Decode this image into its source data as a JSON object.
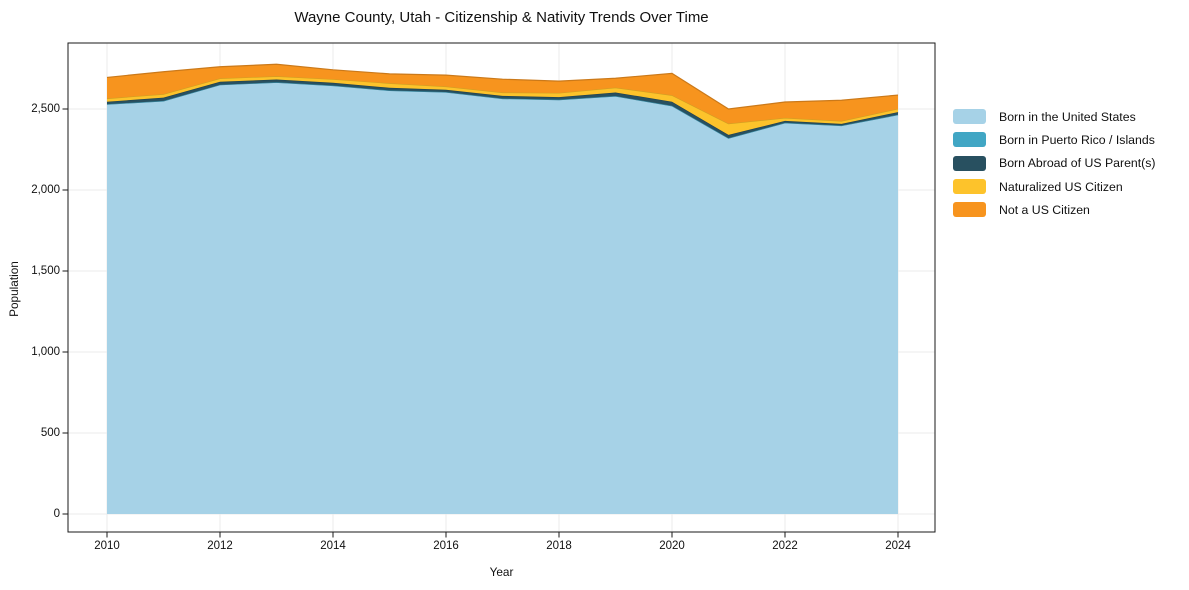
{
  "chart_data": {
    "type": "area",
    "stacked": true,
    "title": "Wayne County, Utah - Citizenship & Nativity Trends Over Time",
    "xlabel": "Year",
    "ylabel": "Population",
    "x": [
      2010,
      2011,
      2012,
      2013,
      2014,
      2015,
      2016,
      2017,
      2018,
      2019,
      2020,
      2021,
      2022,
      2023,
      2024
    ],
    "series": [
      {
        "name": "Born in the United States",
        "color": "#a6d2e7",
        "values": [
          2530,
          2550,
          2650,
          2665,
          2645,
          2615,
          2605,
          2565,
          2558,
          2580,
          2520,
          2320,
          2415,
          2398,
          2465
        ]
      },
      {
        "name": "Born in Puerto Rico / Islands",
        "color": "#41a6c4",
        "values": [
          0,
          0,
          0,
          0,
          0,
          0,
          0,
          0,
          0,
          0,
          0,
          0,
          0,
          0,
          0
        ]
      },
      {
        "name": "Born Abroad of US Parent(s)",
        "color": "#285060",
        "values": [
          15,
          20,
          18,
          17,
          17,
          16,
          14,
          16,
          15,
          22,
          25,
          20,
          12,
          10,
          16
        ]
      },
      {
        "name": "Naturalized US Citizen",
        "color": "#fdc32b",
        "values": [
          20,
          22,
          21,
          20,
          22,
          28,
          20,
          21,
          26,
          30,
          40,
          70,
          18,
          18,
          20
        ]
      },
      {
        "name": "Not a US Citizen",
        "color": "#f7941e",
        "values": [
          130,
          138,
          72,
          74,
          58,
          58,
          70,
          82,
          73,
          58,
          135,
          90,
          98,
          128,
          85
        ]
      }
    ],
    "xticks": {
      "values": [
        2010,
        2012,
        2014,
        2016,
        2018,
        2020,
        2022,
        2024
      ],
      "labels": [
        "2010",
        "2012",
        "2014",
        "2016",
        "2018",
        "2020",
        "2022",
        "2024"
      ]
    },
    "yticks": {
      "values": [
        0,
        500,
        1000,
        1500,
        2000,
        2500
      ],
      "labels": [
        "0",
        "500",
        "1,000",
        "1,500",
        "2,000",
        "2,500"
      ]
    },
    "ylim": [
      -110,
      2905
    ],
    "xlim": [
      2009.3,
      2024.65
    ],
    "grid": true,
    "legend_position": "right"
  },
  "colors": {
    "background": "#ffffff",
    "grid": "#ebebeb",
    "spine": "#1a1a1a",
    "text": "#111111"
  }
}
